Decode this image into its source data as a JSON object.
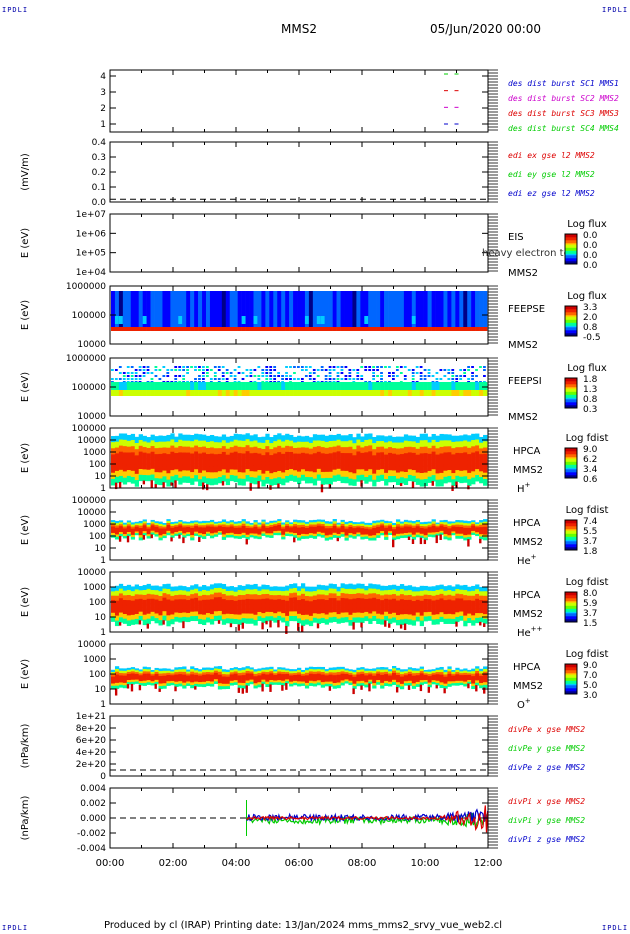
{
  "header": {
    "corner_tl": "IPDLI",
    "corner_tr": "IPDLI",
    "corner_bl": "IPDLI",
    "corner_br": "IPDLI",
    "title": "MMS2",
    "datetime": "05/Jun/2020 00:00"
  },
  "footer": {
    "text": "Produced by cl (IRAP)   Printing date: 13/Jan/2024   mms_mms2_srvy_vue_web2.cl"
  },
  "colors": {
    "red": "#dd0000",
    "green": "#00cc00",
    "blue": "#0000cc",
    "magenta": "#cc00cc"
  },
  "chart_data": {
    "type": "multi-panel time series / spectrogram",
    "xlim": [
      "00:00",
      "12:00"
    ],
    "x_ticks": [
      "00:00",
      "02:00",
      "04:00",
      "06:00",
      "08:00",
      "10:00",
      "12:00"
    ],
    "panels": [
      {
        "id": "burst",
        "type": "timeline",
        "ylabel": "",
        "yticks": [
          "1",
          "2",
          "3",
          "4"
        ],
        "legend": [
          {
            "text": "des dist burst SC1 MMS1",
            "color": "#0000cc"
          },
          {
            "text": "des dist burst SC2 MMS2",
            "color": "#cc00cc"
          },
          {
            "text": "des dist burst SC3 MMS3",
            "color": "#dd0000"
          },
          {
            "text": "des dist burst SC4 MMS4",
            "color": "#00cc00"
          }
        ],
        "events": [
          {
            "t": "10:40",
            "sc": [
              1,
              2,
              3,
              4
            ]
          },
          {
            "t": "11:00",
            "sc": [
              1,
              2,
              3,
              4
            ]
          }
        ]
      },
      {
        "id": "edi",
        "type": "line",
        "ylabel": "(mV/m)",
        "yticks": [
          "0.0",
          "0.1",
          "0.2",
          "0.3",
          "0.4"
        ],
        "ylim": [
          -0.02,
          0.42
        ],
        "dashed_zero": true,
        "legend": [
          {
            "text": "edi ex gse l2 MMS2",
            "color": "#dd0000"
          },
          {
            "text": "edi ey gse l2 MMS2",
            "color": "#00cc00"
          },
          {
            "text": "edi ez gse l2 MMS2",
            "color": "#0000cc"
          }
        ]
      },
      {
        "id": "eis",
        "type": "spectrogram",
        "ylabel": "E (eV)",
        "yticks": [
          "1e+04",
          "1e+05",
          "1e+06",
          "1e+07"
        ],
        "instrument": "EIS",
        "overlay": "heavy electron to",
        "spacecraft": "MMS2",
        "cbar_title": "Log flux",
        "cbar_ticks": [
          "0.0",
          "0.0",
          "0.0",
          "0.0"
        ],
        "empty": true
      },
      {
        "id": "feepse",
        "type": "spectrogram",
        "ylabel": "E (eV)",
        "yticks": [
          "10000",
          "100000",
          "1000000"
        ],
        "instrument": "FEEPSE",
        "spacecraft": "MMS2",
        "cbar_title": "Log flux",
        "cbar_ticks": [
          "3.3",
          "2.0",
          "0.8",
          "-0.5"
        ]
      },
      {
        "id": "feepsi",
        "type": "spectrogram",
        "ylabel": "E (eV)",
        "yticks": [
          "10000",
          "100000",
          "1000000"
        ],
        "instrument": "FEEPSI",
        "spacecraft": "MMS2",
        "cbar_title": "Log flux",
        "cbar_ticks": [
          "1.8",
          "1.3",
          "0.8",
          "0.3"
        ]
      },
      {
        "id": "hpca_h",
        "type": "spectrogram",
        "ylabel": "E (eV)",
        "yticks": [
          "1",
          "10",
          "100",
          "1000",
          "10000",
          "100000"
        ],
        "instrument": "HPCA",
        "spacecraft": "MMS2",
        "species": "H",
        "species_sup": "+",
        "cbar_title": "Log fdist",
        "cbar_ticks": [
          "9.0",
          "6.2",
          "3.4",
          "0.6"
        ]
      },
      {
        "id": "hpca_he",
        "type": "spectrogram",
        "ylabel": "E (eV)",
        "yticks": [
          "1",
          "10",
          "100",
          "1000",
          "10000",
          "100000"
        ],
        "instrument": "HPCA",
        "spacecraft": "MMS2",
        "species": "He",
        "species_sup": "+",
        "cbar_title": "Log fdist",
        "cbar_ticks": [
          "7.4",
          "5.5",
          "3.7",
          "1.8"
        ]
      },
      {
        "id": "hpca_hepp",
        "type": "spectrogram",
        "ylabel": "E (eV)",
        "yticks": [
          "1",
          "10",
          "100",
          "1000",
          "10000"
        ],
        "instrument": "HPCA",
        "spacecraft": "MMS2",
        "species": "He",
        "species_sup": "++",
        "cbar_title": "Log fdist",
        "cbar_ticks": [
          "8.0",
          "5.9",
          "3.7",
          "1.5"
        ]
      },
      {
        "id": "hpca_o",
        "type": "spectrogram",
        "ylabel": "E (eV)",
        "yticks": [
          "1",
          "10",
          "100",
          "1000",
          "10000"
        ],
        "instrument": "HPCA",
        "spacecraft": "MMS2",
        "species": "O",
        "species_sup": "+",
        "cbar_title": "Log fdist",
        "cbar_ticks": [
          "9.0",
          "7.0",
          "5.0",
          "3.0"
        ]
      },
      {
        "id": "divpe",
        "type": "line",
        "ylabel": "(nPa/km)",
        "yticks": [
          "0",
          "2e+20",
          "4e+20",
          "6e+20",
          "8e+20",
          "1e+21"
        ],
        "dashed_zero": true,
        "legend": [
          {
            "text": "divPe x gse MMS2",
            "color": "#dd0000"
          },
          {
            "text": "divPe y gse MMS2",
            "color": "#00cc00"
          },
          {
            "text": "divPe z gse MMS2",
            "color": "#0000cc"
          }
        ]
      },
      {
        "id": "divpi",
        "type": "line",
        "ylabel": "(nPa/km)",
        "yticks": [
          "-0.004",
          "-0.002",
          "0.000",
          "0.002",
          "0.004"
        ],
        "ylim": [
          -0.0045,
          0.0045
        ],
        "dashed_zero": true,
        "data_start": "04:20",
        "legend": [
          {
            "text": "divPi x gse MMS2",
            "color": "#dd0000"
          },
          {
            "text": "divPi y gse MMS2",
            "color": "#00cc00"
          },
          {
            "text": "divPi z gse MMS2",
            "color": "#0000cc"
          }
        ]
      }
    ]
  }
}
